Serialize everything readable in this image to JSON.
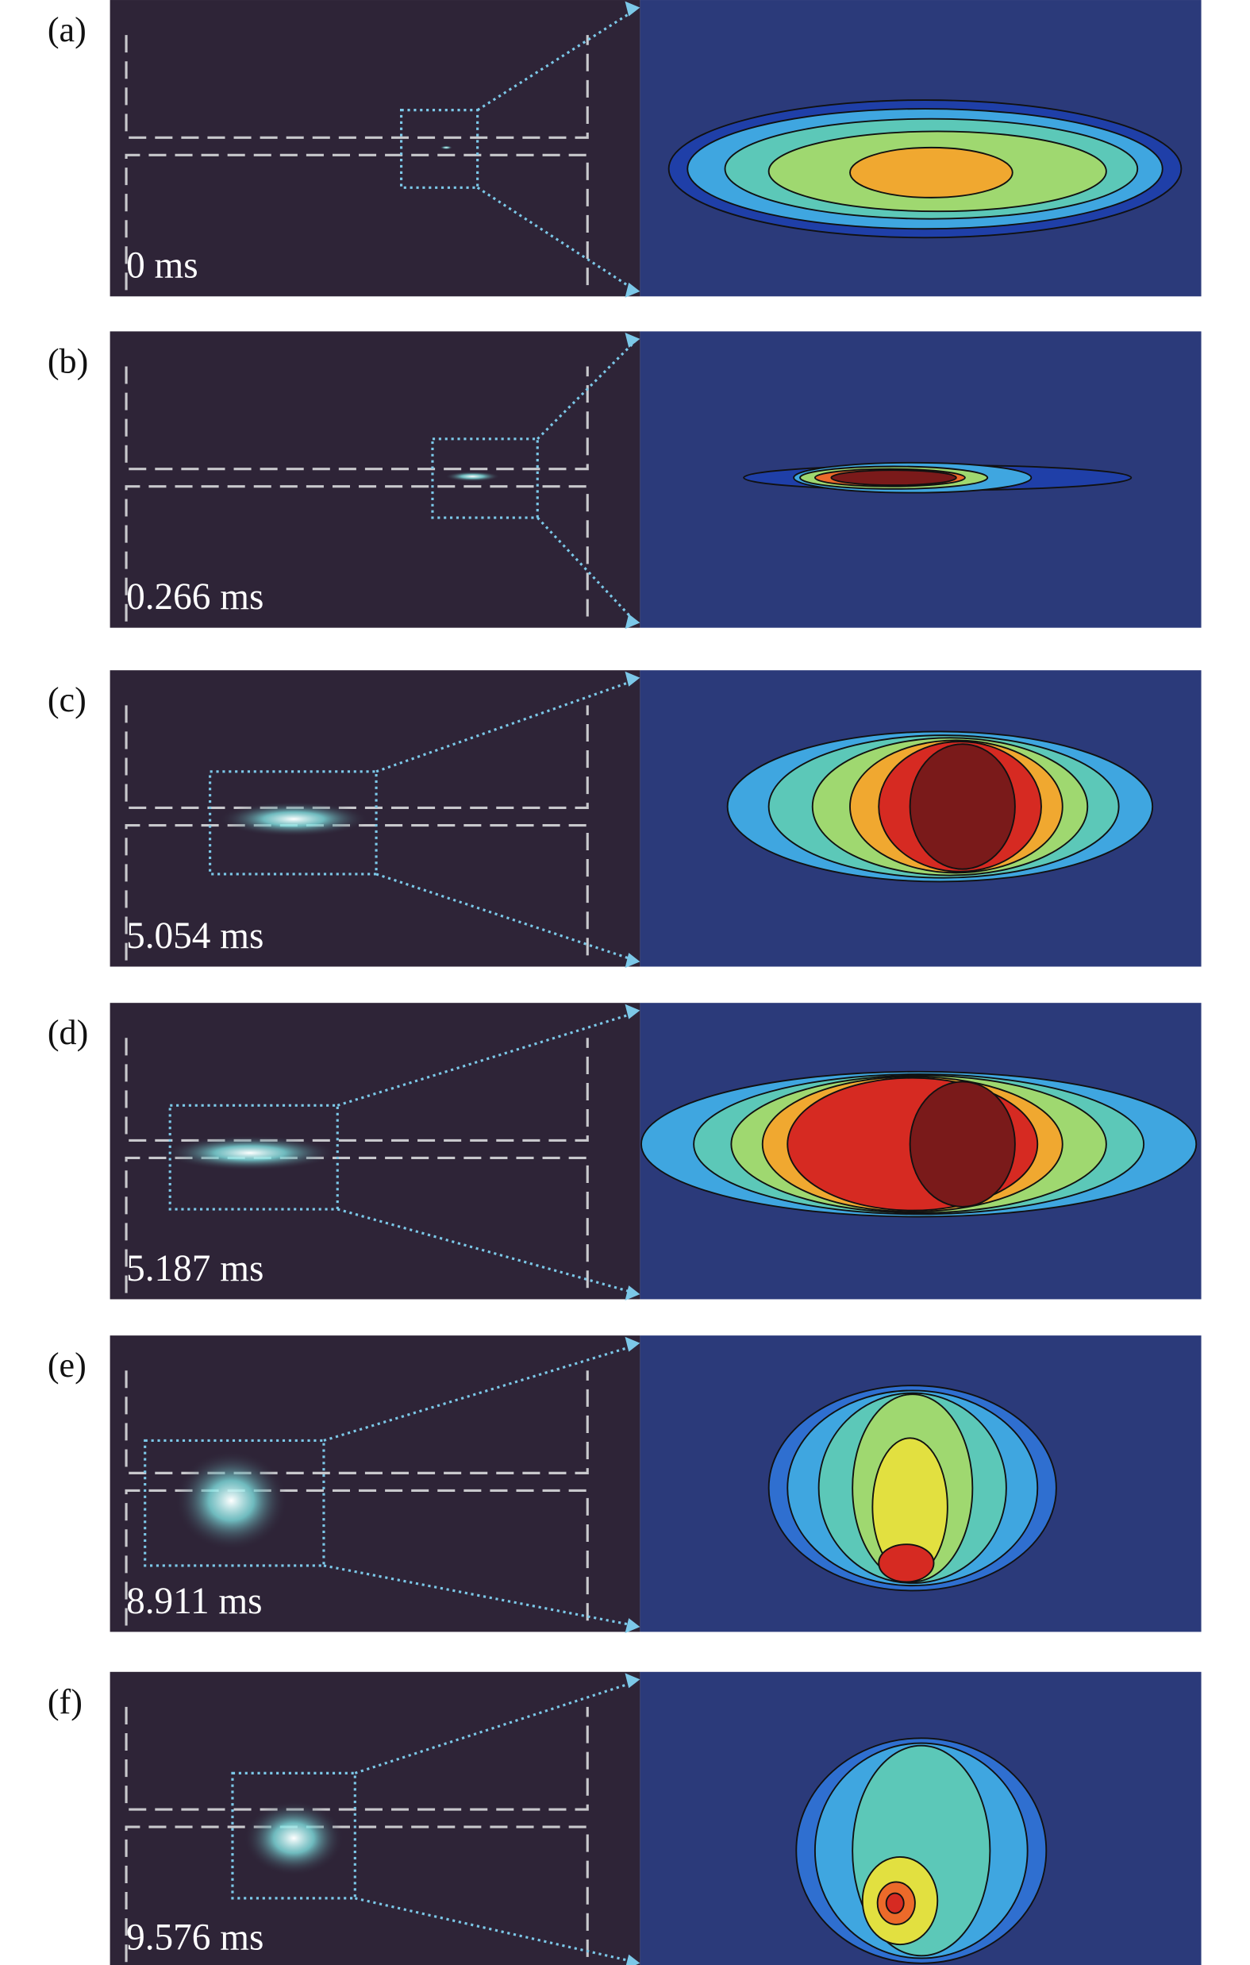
{
  "panels": [
    {
      "label": "(a)",
      "time": "0 ms"
    },
    {
      "label": "(b)",
      "time": "0.266 ms"
    },
    {
      "label": "(c)",
      "time": "5.054 ms"
    },
    {
      "label": "(d)",
      "time": "5.187 ms"
    },
    {
      "label": "(e)",
      "time": "8.911 ms"
    },
    {
      "label": "(f)",
      "time": "9.576 ms"
    }
  ]
}
